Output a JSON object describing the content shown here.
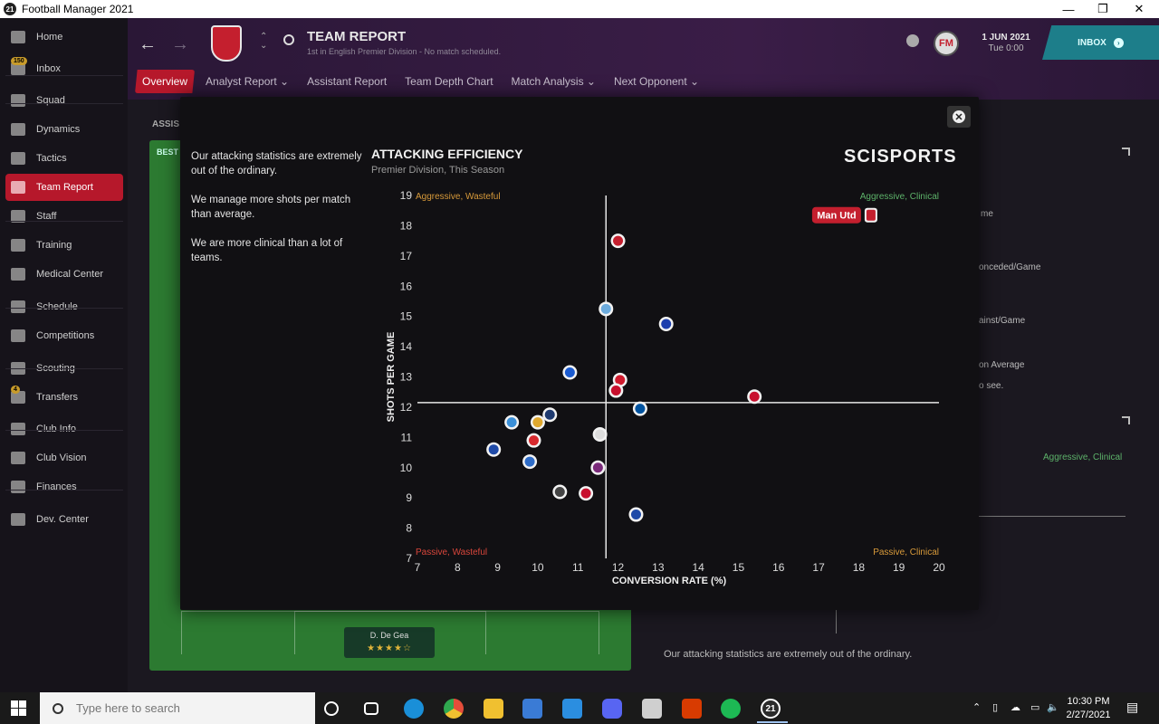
{
  "window": {
    "title": "Football Manager 2021",
    "app_icon": "21"
  },
  "sidebar": {
    "items": [
      {
        "label": "Home",
        "icon": "home-icon"
      },
      {
        "label": "Inbox",
        "icon": "inbox-icon",
        "badge": "150"
      },
      {
        "label": "Squad",
        "icon": "shirt-icon"
      },
      {
        "label": "Dynamics",
        "icon": "dynamics-icon"
      },
      {
        "label": "Tactics",
        "icon": "tactics-icon"
      },
      {
        "label": "Team Report",
        "icon": "report-icon",
        "active": true
      },
      {
        "label": "Staff",
        "icon": "staff-icon"
      },
      {
        "label": "Training",
        "icon": "training-icon"
      },
      {
        "label": "Medical Center",
        "icon": "medical-icon"
      },
      {
        "label": "Schedule",
        "icon": "calendar-icon"
      },
      {
        "label": "Competitions",
        "icon": "trophy-icon"
      },
      {
        "label": "Scouting",
        "icon": "scouting-icon"
      },
      {
        "label": "Transfers",
        "icon": "transfers-icon",
        "badge": "4"
      },
      {
        "label": "Club Info",
        "icon": "shield-icon"
      },
      {
        "label": "Club Vision",
        "icon": "vision-icon"
      },
      {
        "label": "Finances",
        "icon": "finances-icon"
      },
      {
        "label": "Dev. Center",
        "icon": "dev-center-icon"
      }
    ]
  },
  "header": {
    "title": "TEAM REPORT",
    "subtitle": "1st in English Premier Division - No match scheduled.",
    "date": "1 JUN 2021",
    "time": "Tue 0:00",
    "inbox_label": "INBOX",
    "fm_logo": "FM",
    "tabs": [
      {
        "label": "Overview",
        "active": true
      },
      {
        "label": "Analyst Report ⌄"
      },
      {
        "label": "Assistant Report"
      },
      {
        "label": "Team Depth Chart"
      },
      {
        "label": "Match Analysis ⌄"
      },
      {
        "label": "Next Opponent ⌄"
      }
    ]
  },
  "background": {
    "assis_label": "ASSIS",
    "best_label": "BEST",
    "gk_name": "D. De Gea",
    "gk_rating": 3.5,
    "right_texts": [
      "me",
      "onceded/Game",
      "ainst/Game",
      "on Average",
      "o see."
    ],
    "right_quadrant": "Aggressive, Clinical",
    "footer_text": "Our attacking statistics are extremely out of the ordinary."
  },
  "modal": {
    "insights": [
      "Our attacking statistics are extremely out of the ordinary.",
      "We manage more shots per match than average.",
      "We are more clinical than a lot of teams."
    ],
    "close_icon": "close-icon",
    "brand": "SCISPORTS"
  },
  "chart_data": {
    "type": "scatter",
    "title": "ATTACKING EFFICIENCY",
    "subtitle": "Premier Division, This Season",
    "xlabel": "CONVERSION RATE (%)",
    "ylabel": "SHOTS PER GAME",
    "xlim": [
      7,
      20
    ],
    "ylim": [
      7,
      19
    ],
    "xticks": [
      7,
      8,
      9,
      10,
      11,
      12,
      13,
      14,
      15,
      16,
      17,
      18,
      19,
      20
    ],
    "yticks": [
      7,
      8,
      9,
      10,
      11,
      12,
      13,
      14,
      15,
      16,
      17,
      18,
      19
    ],
    "average_x": 11.7,
    "average_y": 12.15,
    "quadrants": {
      "top_left": "Aggressive, Wasteful",
      "top_right": "Aggressive, Clinical",
      "bottom_left": "Passive, Wasteful",
      "bottom_right": "Passive, Clinical"
    },
    "quadrant_colors": {
      "aggressive_wasteful": "#d89a3a",
      "aggressive_clinical": "#5db36a",
      "passive_wasteful": "#d9463b",
      "passive_clinical": "#d89a3a"
    },
    "highlight": {
      "label": "Man Utd",
      "x": 18.35,
      "y": 18.35,
      "color": "#c41f2e"
    },
    "points": [
      {
        "x": 12.0,
        "y": 17.5,
        "color": "#c41f2e"
      },
      {
        "x": 11.7,
        "y": 15.25,
        "color": "#6cabdd"
      },
      {
        "x": 13.2,
        "y": 14.75,
        "color": "#1d3fae"
      },
      {
        "x": 10.8,
        "y": 13.15,
        "color": "#1b5bd0"
      },
      {
        "x": 12.05,
        "y": 12.9,
        "color": "#d01b2e"
      },
      {
        "x": 11.95,
        "y": 12.55,
        "color": "#c8102e"
      },
      {
        "x": 15.4,
        "y": 12.35,
        "color": "#c8102e"
      },
      {
        "x": 12.55,
        "y": 11.95,
        "color": "#0053a0"
      },
      {
        "x": 10.3,
        "y": 11.75,
        "color": "#1e3a70"
      },
      {
        "x": 9.35,
        "y": 11.5,
        "color": "#3a8fd8"
      },
      {
        "x": 10.0,
        "y": 11.5,
        "color": "#e0a82e"
      },
      {
        "x": 11.55,
        "y": 11.1,
        "color": "#dddddd"
      },
      {
        "x": 9.9,
        "y": 10.9,
        "color": "#d8292e"
      },
      {
        "x": 8.9,
        "y": 10.6,
        "color": "#1f4aa8"
      },
      {
        "x": 9.8,
        "y": 10.2,
        "color": "#2e6cc8"
      },
      {
        "x": 11.5,
        "y": 10.0,
        "color": "#7a2a7a"
      },
      {
        "x": 10.55,
        "y": 9.2,
        "color": "#444444"
      },
      {
        "x": 11.2,
        "y": 9.15,
        "color": "#c8102e"
      },
      {
        "x": 12.45,
        "y": 8.45,
        "color": "#1f4aa8"
      }
    ]
  },
  "taskbar": {
    "search_placeholder": "Type here to search",
    "time": "10:30 PM",
    "date": "2/27/2021",
    "apps": [
      "cortana-icon",
      "task-view-icon",
      "edge-icon",
      "chrome-icon",
      "file-explorer-icon",
      "store-icon",
      "mail-icon",
      "discord-icon",
      "box-icon",
      "office-icon",
      "spotify-icon",
      "fm21-icon"
    ],
    "colors": {
      "edge": "#1a8fd8",
      "chrome": "#e44d3a",
      "explorer": "#f0c030",
      "store": "#3a7bd5",
      "mail": "#2b8ee0",
      "discord": "#5865f2",
      "office": "#d83b01",
      "spotify": "#1db954"
    }
  }
}
